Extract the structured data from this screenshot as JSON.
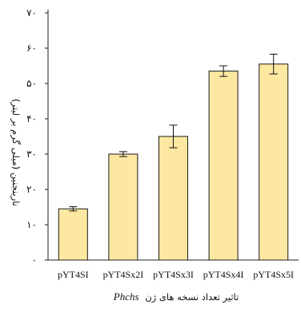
{
  "chart_data": {
    "type": "bar",
    "categories": [
      "pYT4SI",
      "pYT4Sx2I",
      "pYT4Sx3I",
      "pYT4Sx4I",
      "pYT4Sx5I"
    ],
    "values": [
      14.5,
      30,
      35,
      53.5,
      55.5
    ],
    "errors": [
      0.6,
      0.7,
      3.2,
      1.5,
      2.8
    ],
    "xlabel_prefix": "تاثیر تعداد نسخه های ژن",
    "xlabel_gene": "Phchs",
    "ylabel": "نارینجنین (میلی گرم بر لیتر)",
    "ylim": [
      0,
      70
    ],
    "yticks": [
      {
        "value": 0,
        "label": "۰"
      },
      {
        "value": 10,
        "label": "۱۰"
      },
      {
        "value": 20,
        "label": "۲۰"
      },
      {
        "value": 30,
        "label": "۳۰"
      },
      {
        "value": 40,
        "label": "۴۰"
      },
      {
        "value": 50,
        "label": "۵۰"
      },
      {
        "value": 60,
        "label": "۶۰"
      },
      {
        "value": 70,
        "label": "۷۰"
      }
    ],
    "bar_fill": "#fde8a2",
    "grid": false,
    "legend": "none"
  }
}
